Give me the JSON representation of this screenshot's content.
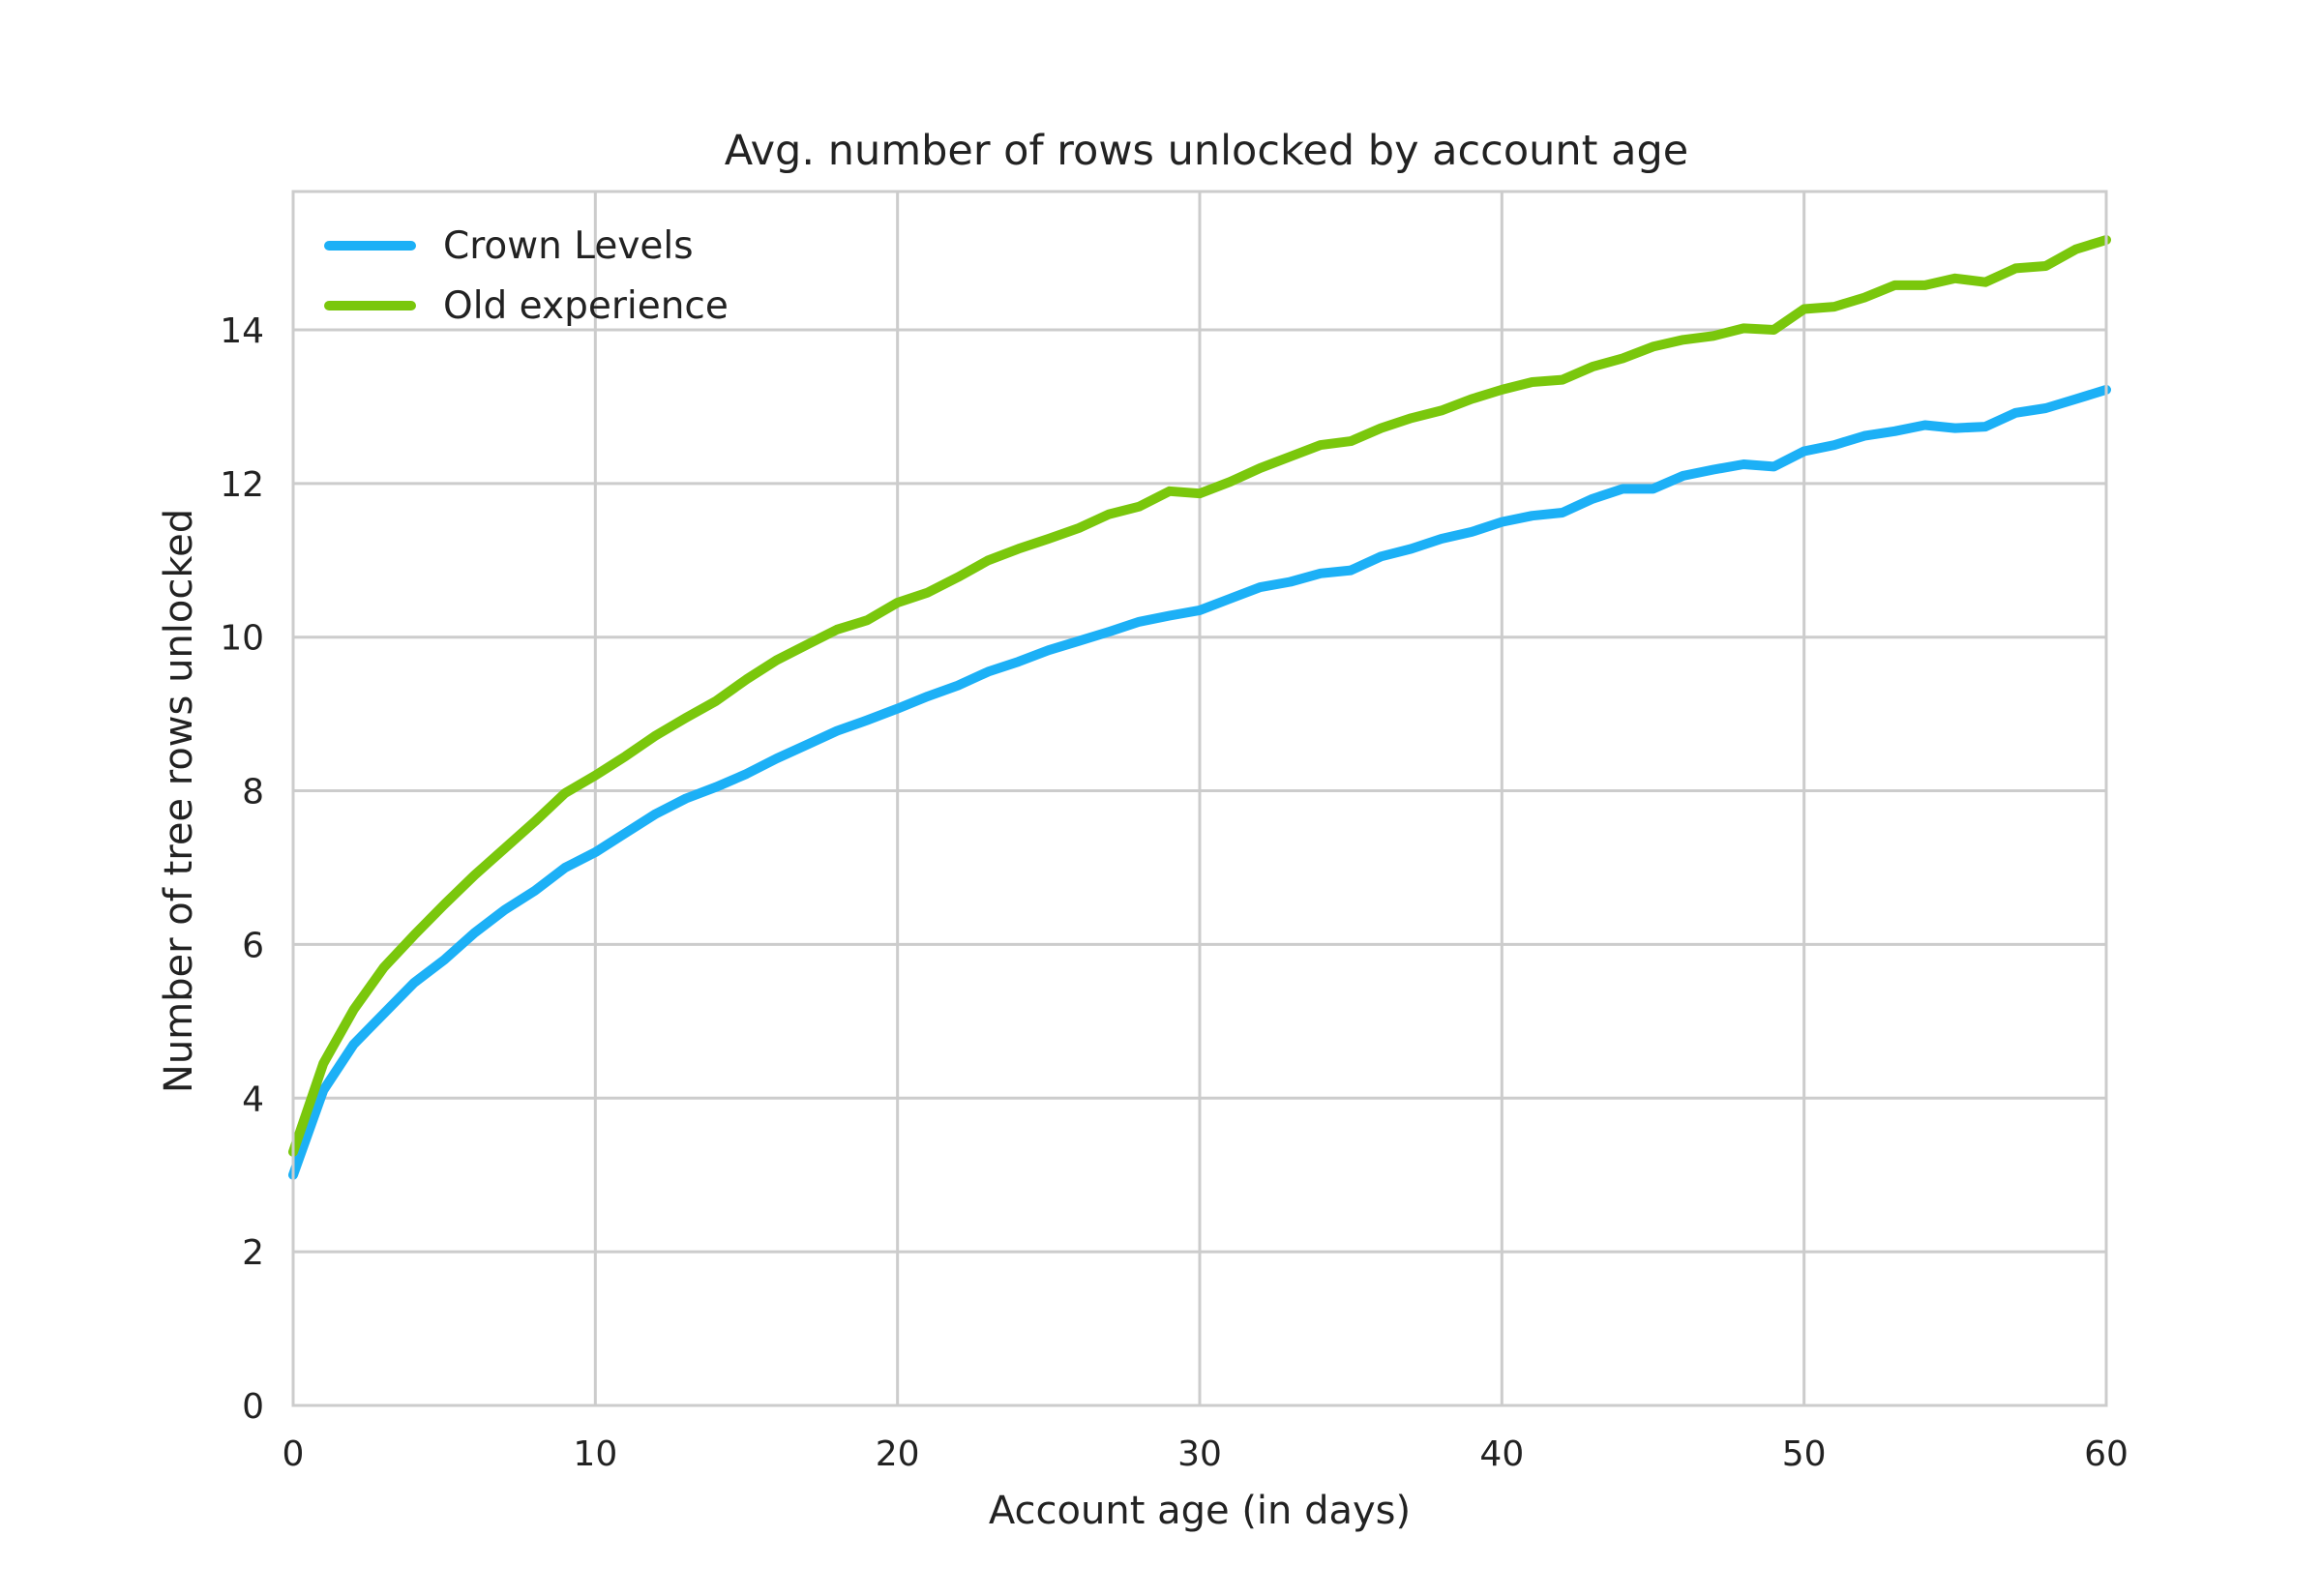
{
  "chart_data": {
    "type": "line",
    "title": "Avg. number of rows unlocked by account age",
    "xlabel": "Account age (in days)",
    "ylabel": "Number of tree rows unlocked",
    "xlim": [
      0,
      60
    ],
    "ylim": [
      0,
      15.8
    ],
    "x_ticks": [
      0,
      10,
      20,
      30,
      40,
      50,
      60
    ],
    "y_ticks": [
      0,
      2,
      4,
      6,
      8,
      10,
      12,
      14
    ],
    "grid": true,
    "legend_position": "top-left",
    "x": [
      0,
      1,
      2,
      3,
      4,
      5,
      6,
      7,
      8,
      9,
      10,
      11,
      12,
      13,
      14,
      15,
      16,
      17,
      18,
      19,
      20,
      21,
      22,
      23,
      24,
      25,
      26,
      27,
      28,
      29,
      30,
      31,
      32,
      33,
      34,
      35,
      36,
      37,
      38,
      39,
      40,
      41,
      42,
      43,
      44,
      45,
      46,
      47,
      48,
      49,
      50,
      51,
      52,
      53,
      54,
      55,
      56,
      57,
      58,
      59,
      60
    ],
    "series": [
      {
        "name": "Crown Levels",
        "color": "#1cb0f6",
        "values": [
          3.0,
          4.1,
          4.7,
          5.1,
          5.5,
          5.8,
          6.15,
          6.45,
          6.7,
          7.0,
          7.2,
          7.45,
          7.7,
          7.9,
          8.05,
          8.22,
          8.42,
          8.6,
          8.78,
          8.92,
          9.07,
          9.23,
          9.37,
          9.55,
          9.68,
          9.83,
          9.95,
          10.07,
          10.2,
          10.28,
          10.35,
          10.5,
          10.65,
          10.72,
          10.83,
          10.87,
          11.05,
          11.15,
          11.28,
          11.37,
          11.5,
          11.58,
          11.62,
          11.8,
          11.93,
          11.93,
          12.1,
          12.18,
          12.25,
          12.22,
          12.42,
          12.5,
          12.62,
          12.68,
          12.76,
          12.72,
          12.74,
          12.92,
          12.98,
          13.1,
          13.22
        ]
      },
      {
        "name": "Old experience",
        "color": "#7ac70c",
        "values": [
          3.3,
          4.45,
          5.15,
          5.7,
          6.12,
          6.52,
          6.9,
          7.25,
          7.6,
          7.97,
          8.2,
          8.45,
          8.72,
          8.95,
          9.17,
          9.45,
          9.7,
          9.9,
          10.1,
          10.22,
          10.45,
          10.58,
          10.78,
          11.0,
          11.15,
          11.28,
          11.42,
          11.6,
          11.7,
          11.9,
          11.87,
          12.02,
          12.2,
          12.35,
          12.5,
          12.55,
          12.72,
          12.85,
          12.95,
          13.1,
          13.22,
          13.32,
          13.35,
          13.52,
          13.63,
          13.78,
          13.87,
          13.92,
          14.02,
          14.0,
          14.27,
          14.3,
          14.42,
          14.58,
          14.58,
          14.67,
          14.62,
          14.8,
          14.83,
          15.05,
          15.17
        ]
      }
    ]
  }
}
